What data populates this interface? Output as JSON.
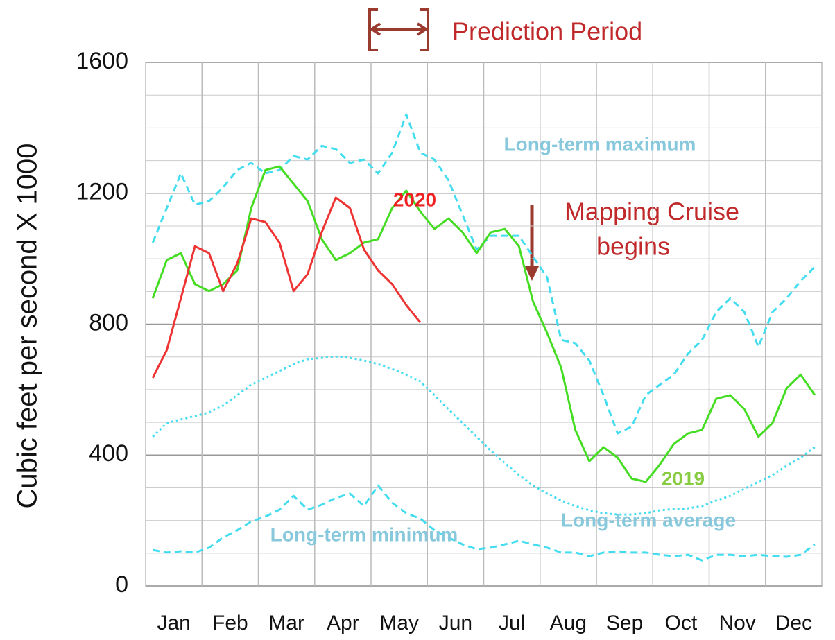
{
  "chart_data": {
    "type": "line",
    "y_label": "Cubic feet per second X 1000",
    "annotations": [
      "Prediction Period",
      "Mapping Cruise",
      "begins"
    ],
    "categories": [
      "Jan",
      null,
      null,
      null,
      "Feb",
      null,
      null,
      null,
      "Mar",
      null,
      null,
      null,
      "Apr",
      null,
      null,
      null,
      "May",
      null,
      null,
      null,
      "Jun",
      null,
      null,
      null,
      "Jul",
      null,
      null,
      null,
      "Aug",
      null,
      null,
      null,
      "Sep",
      null,
      null,
      null,
      "Oct",
      null,
      null,
      null,
      "Nov",
      null,
      null,
      null,
      "Dec",
      null,
      null,
      null
    ],
    "ylim": [
      0,
      1600
    ],
    "yticks": [
      0,
      400,
      800,
      1200,
      1600
    ],
    "grid": true,
    "series": [
      {
        "name": "Long-term average",
        "color": "#44ddf0",
        "style": "dotted",
        "values": [
          456,
          498,
          509,
          519,
          530,
          551,
          583,
          615,
          636,
          657,
          678,
          693,
          697,
          701,
          697,
          689,
          678,
          663,
          646,
          625,
          583,
          540,
          498,
          456,
          413,
          375,
          339,
          307,
          282,
          261,
          244,
          231,
          222,
          218,
          218,
          222,
          231,
          235,
          237,
          244,
          261,
          275,
          297,
          318,
          339,
          367,
          392,
          424
        ]
      },
      {
        "name": "Long-term minimum",
        "color": "#44ddf0",
        "style": "dashed",
        "values": [
          110,
          102,
          106,
          102,
          117,
          148,
          170,
          197,
          212,
          233,
          275,
          233,
          248,
          269,
          282,
          244,
          307,
          254,
          222,
          206,
          170,
          148,
          127,
          112,
          117,
          127,
          138,
          127,
          117,
          102,
          102,
          91,
          102,
          106,
          102,
          102,
          95,
          91,
          95,
          78,
          95,
          95,
          91,
          95,
          91,
          89,
          95,
          127
        ]
      },
      {
        "name": "Long-term maximum",
        "color": "#44ddf0",
        "style": "dashed",
        "values": [
          1049,
          1155,
          1261,
          1165,
          1176,
          1218,
          1271,
          1293,
          1261,
          1271,
          1314,
          1303,
          1345,
          1335,
          1293,
          1303,
          1261,
          1324,
          1441,
          1324,
          1303,
          1240,
          1134,
          1028,
          1070,
          1070,
          1070,
          1006,
          943,
          752,
          742,
          689,
          583,
          466,
          487,
          583,
          615,
          646,
          710,
          752,
          837,
          879,
          837,
          731,
          837,
          879,
          932,
          975
        ]
      },
      {
        "name": "2019",
        "color": "#44dd22",
        "style": "solid",
        "values": [
          879,
          996,
          1017,
          922,
          901,
          922,
          964,
          1155,
          1271,
          1282,
          1229,
          1176,
          1060,
          996,
          1017,
          1049,
          1060,
          1155,
          1208,
          1144,
          1091,
          1123,
          1081,
          1017,
          1081,
          1091,
          1038,
          869,
          773,
          667,
          477,
          381,
          424,
          392,
          328,
          318,
          371,
          434,
          466,
          477,
          572,
          583,
          540,
          456,
          498,
          604,
          646,
          583
        ]
      },
      {
        "name": "2020",
        "color": "#ee3333",
        "style": "solid",
        "values": [
          636,
          721,
          879,
          1038,
          1017,
          901,
          985,
          1123,
          1112,
          1049,
          901,
          953,
          1081,
          1187,
          1155,
          1028,
          964,
          922,
          858,
          805,
          null,
          null,
          null,
          null,
          null,
          null,
          null,
          null,
          null,
          null,
          null,
          null,
          null,
          null,
          null,
          null,
          null,
          null,
          null,
          null,
          null,
          null,
          null,
          null,
          null,
          null,
          null,
          null
        ]
      }
    ]
  }
}
